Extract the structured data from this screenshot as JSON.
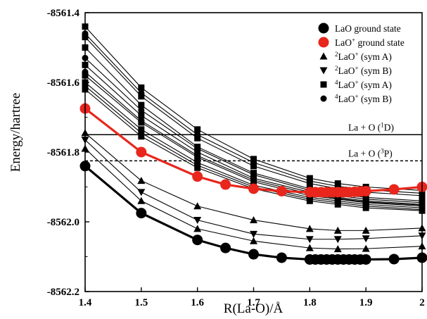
{
  "chart_data": {
    "type": "line",
    "title": "",
    "xlabel": "R(La-O)/Å",
    "ylabel": "Energy/hartree",
    "xlim": [
      1.4,
      2.0
    ],
    "ylim": [
      -8562.2,
      -8561.4
    ],
    "x_ticks": [
      "1.4",
      "1.5",
      "1.6",
      "1.7",
      "1.8",
      "1.9",
      "2"
    ],
    "y_ticks": [
      "-8561.4",
      "-8561.6",
      "-8561.8",
      "-8562.0",
      "-8562.2"
    ],
    "legend": [
      {
        "key": "lao",
        "label": "LaO ground state",
        "marker": "circle-large",
        "color": "#000000"
      },
      {
        "key": "laop",
        "label": "LaO",
        "sup": "+",
        "suffix": " ground state",
        "marker": "circle-large",
        "color": "#e8261c"
      },
      {
        "key": "d2a",
        "pre": "2",
        "label": "LaO",
        "sup": "+",
        "suffix": " (sym A)",
        "marker": "triangle-up",
        "color": "#000000"
      },
      {
        "key": "d2b",
        "pre": "2",
        "label": "LaO",
        "sup": "+",
        "suffix": " (sym B)",
        "marker": "triangle-down",
        "color": "#000000"
      },
      {
        "key": "q4a",
        "pre": "4",
        "label": "LaO",
        "sup": "+",
        "suffix": " (sym A)",
        "marker": "square",
        "color": "#000000"
      },
      {
        "key": "q4b",
        "pre": "4",
        "label": "LaO",
        "sup": "+",
        "suffix": " (sym B)",
        "marker": "circle",
        "color": "#000000"
      }
    ],
    "reference_lines": [
      {
        "label": "La + O (",
        "sup": "1",
        "label_end": "D)",
        "y": -8561.75,
        "style": "solid"
      },
      {
        "label": "La + O (",
        "sup": "3",
        "label_end": "P)",
        "y": -8561.825,
        "style": "dashed"
      }
    ],
    "series": [
      {
        "name": "LaO ground state",
        "marker": "circle-large",
        "color": "#000000",
        "x": [
          1.4,
          1.5,
          1.6,
          1.65,
          1.7,
          1.75,
          1.8,
          1.81,
          1.82,
          1.83,
          1.84,
          1.85,
          1.86,
          1.87,
          1.88,
          1.89,
          1.9,
          1.95,
          2.0
        ],
        "y": [
          -8561.84,
          -8561.975,
          -8562.052,
          -8562.075,
          -8562.093,
          -8562.103,
          -8562.108,
          -8562.108,
          -8562.108,
          -8562.108,
          -8562.108,
          -8562.108,
          -8562.108,
          -8562.108,
          -8562.108,
          -8562.108,
          -8562.108,
          -8562.107,
          -8562.103
        ]
      },
      {
        "name": "LaO+ ground state",
        "marker": "circle-large",
        "color": "#e8261c",
        "x": [
          1.4,
          1.5,
          1.6,
          1.65,
          1.7,
          1.75,
          1.8,
          1.81,
          1.82,
          1.83,
          1.84,
          1.85,
          1.86,
          1.87,
          1.88,
          1.89,
          1.9,
          1.95,
          2.0
        ],
        "y": [
          -8561.675,
          -8561.8,
          -8561.87,
          -8561.893,
          -8561.905,
          -8561.912,
          -8561.915,
          -8561.915,
          -8561.915,
          -8561.915,
          -8561.915,
          -8561.915,
          -8561.915,
          -8561.915,
          -8561.914,
          -8561.913,
          -8561.912,
          -8561.907,
          -8561.9
        ]
      },
      {
        "name": "2LaO+ (sym A)",
        "marker": "triangle-up",
        "x": [
          1.4,
          1.5,
          1.6,
          1.7,
          1.8,
          1.85,
          1.9,
          2.0
        ],
        "y": [
          -8561.745,
          -8561.882,
          -8561.955,
          -8561.995,
          -8562.02,
          -8562.025,
          -8562.025,
          -8562.018
        ]
      },
      {
        "name": "2LaO+ (sym A)",
        "marker": "triangle-up",
        "x": [
          1.4,
          1.5,
          1.6,
          1.7,
          1.8,
          1.85,
          1.9,
          2.0
        ],
        "y": [
          -8561.79,
          -8561.94,
          -8562.02,
          -8562.055,
          -8562.075,
          -8562.078,
          -8562.077,
          -8562.07
        ]
      },
      {
        "name": "2LaO+ (sym B)",
        "marker": "triangle-down",
        "x": [
          1.4,
          1.5,
          1.6,
          1.7,
          1.8,
          1.85,
          1.9,
          2.0
        ],
        "y": [
          -8561.765,
          -8561.915,
          -8561.995,
          -8562.035,
          -8562.05,
          -8562.05,
          -8562.048,
          -8562.04
        ]
      },
      {
        "name": "4LaO+ (sym A)",
        "marker": "square",
        "x": [
          1.4,
          1.5,
          1.6,
          1.7,
          1.8,
          1.85,
          1.9,
          2.0
        ],
        "y": [
          -8561.44,
          -8561.615,
          -8561.735,
          -8561.82,
          -8561.875,
          -8561.89,
          -8561.9,
          -8561.91
        ]
      },
      {
        "name": "4LaO+ (sym A)",
        "marker": "square",
        "x": [
          1.4,
          1.5,
          1.6,
          1.7,
          1.8,
          1.85,
          1.9,
          2.0
        ],
        "y": [
          -8561.47,
          -8561.64,
          -8561.76,
          -8561.84,
          -8561.89,
          -8561.905,
          -8561.915,
          -8561.925
        ]
      },
      {
        "name": "4LaO+ (sym A)",
        "marker": "square",
        "x": [
          1.4,
          1.5,
          1.6,
          1.7,
          1.8,
          1.85,
          1.9,
          2.0
        ],
        "y": [
          -8561.5,
          -8561.665,
          -8561.785,
          -8561.86,
          -8561.905,
          -8561.92,
          -8561.93,
          -8561.94
        ]
      },
      {
        "name": "4LaO+ (sym A)",
        "marker": "square",
        "x": [
          1.4,
          1.5,
          1.6,
          1.7,
          1.8,
          1.85,
          1.9,
          2.0
        ],
        "y": [
          -8561.55,
          -8561.695,
          -8561.8,
          -8561.875,
          -8561.915,
          -8561.93,
          -8561.94,
          -8561.95
        ]
      },
      {
        "name": "4LaO+ (sym A)",
        "marker": "square",
        "x": [
          1.4,
          1.5,
          1.6,
          1.7,
          1.8,
          1.85,
          1.9,
          2.0
        ],
        "y": [
          -8561.58,
          -8561.715,
          -8561.815,
          -8561.885,
          -8561.925,
          -8561.935,
          -8561.945,
          -8561.955
        ]
      },
      {
        "name": "4LaO+ (sym A)",
        "marker": "square",
        "x": [
          1.4,
          1.5,
          1.6,
          1.7,
          1.8,
          1.85,
          1.9,
          2.0
        ],
        "y": [
          -8561.6,
          -8561.735,
          -8561.83,
          -8561.895,
          -8561.93,
          -8561.94,
          -8561.95,
          -8561.96
        ]
      },
      {
        "name": "4LaO+ (sym A)",
        "marker": "square",
        "x": [
          1.4,
          1.5,
          1.6,
          1.7,
          1.8,
          1.85,
          1.9,
          2.0
        ],
        "y": [
          -8561.62,
          -8561.755,
          -8561.845,
          -8561.905,
          -8561.94,
          -8561.95,
          -8561.96,
          -8561.968
        ]
      },
      {
        "name": "4LaO+ (sym B)",
        "marker": "circle",
        "x": [
          1.4,
          1.5,
          1.6,
          1.7,
          1.8,
          1.85,
          1.9,
          2.0
        ],
        "y": [
          -8561.46,
          -8561.63,
          -8561.75,
          -8561.83,
          -8561.883,
          -8561.898,
          -8561.908,
          -8561.918
        ]
      },
      {
        "name": "4LaO+ (sym B)",
        "marker": "circle",
        "x": [
          1.4,
          1.5,
          1.6,
          1.7,
          1.8,
          1.85,
          1.9,
          2.0
        ],
        "y": [
          -8561.53,
          -8561.68,
          -8561.79,
          -8561.865,
          -8561.91,
          -8561.925,
          -8561.935,
          -8561.945
        ]
      },
      {
        "name": "4LaO+ (sym B)",
        "marker": "circle",
        "x": [
          1.4,
          1.5,
          1.6,
          1.7,
          1.8,
          1.85,
          1.9,
          2.0
        ],
        "y": [
          -8561.57,
          -8561.71,
          -8561.81,
          -8561.88,
          -8561.92,
          -8561.933,
          -8561.943,
          -8561.952
        ]
      },
      {
        "name": "4LaO+ (sym B)",
        "marker": "circle",
        "x": [
          1.4,
          1.5,
          1.6,
          1.7,
          1.8,
          1.85,
          1.9,
          2.0
        ],
        "y": [
          -8561.61,
          -8561.745,
          -8561.838,
          -8561.9,
          -8561.935,
          -8561.945,
          -8561.955,
          -8561.965
        ]
      }
    ]
  }
}
